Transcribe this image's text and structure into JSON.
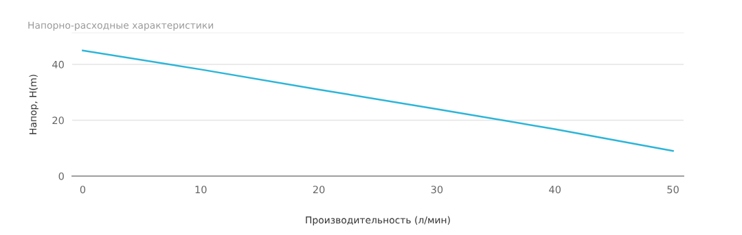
{
  "chart_data": {
    "type": "line",
    "title": "Напорно-расходные характеристики",
    "xlabel": "Производительность (л/мин)",
    "ylabel": "Напор, H(m)",
    "x": [
      0,
      10,
      20,
      30,
      40,
      50
    ],
    "series": [
      {
        "color": "#2bb5d8",
        "values": [
          45,
          38.2,
          31,
          24,
          16.8,
          9
        ]
      }
    ],
    "xlim": [
      -0.9,
      50.9
    ],
    "xticks": [
      0,
      10,
      20,
      30,
      40,
      50
    ],
    "ylim": [
      0,
      51.3
    ],
    "yticks": [
      0,
      20,
      40
    ],
    "grid": "y",
    "marker": "none",
    "line_style": "solid"
  }
}
